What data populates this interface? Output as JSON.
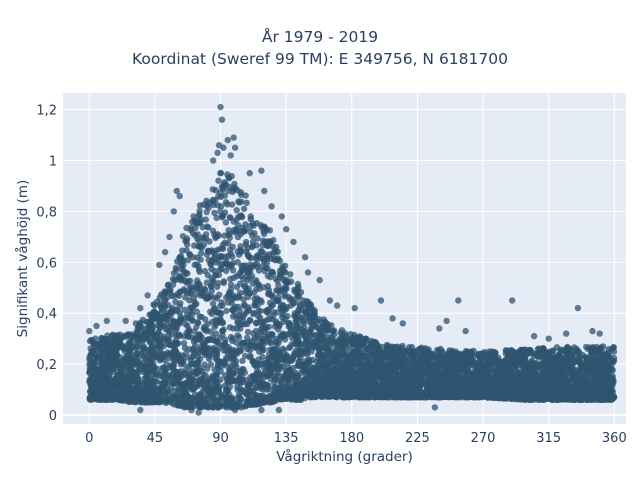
{
  "chart_data": {
    "type": "scatter",
    "title": "År 1979 - 2019",
    "subtitle": "Koordinat (Sweref 99 TM): E 349756, N 6181700",
    "xlabel": "Vågriktning (grader)",
    "ylabel": "Signifikant våghöjd (m)",
    "xlim": [
      -18,
      368
    ],
    "ylim": [
      -0.035,
      1.265
    ],
    "x_ticks": [
      0,
      45,
      90,
      135,
      180,
      225,
      270,
      315,
      360
    ],
    "x_tick_labels": [
      "0",
      "45",
      "90",
      "135",
      "180",
      "225",
      "270",
      "315",
      "360"
    ],
    "y_ticks": [
      0,
      0.2,
      0.4,
      0.6,
      0.8,
      1,
      1.2
    ],
    "y_tick_labels": [
      "0",
      "0,2",
      "0,4",
      "0,6",
      "0,8",
      "1",
      "1,2"
    ],
    "marker_color": "#2f5470",
    "grid": true,
    "background": "#e5ecf6",
    "envelope": {
      "x": [
        0,
        20,
        30,
        40,
        50,
        60,
        65,
        70,
        75,
        80,
        85,
        90,
        95,
        100,
        105,
        110,
        115,
        120,
        125,
        130,
        135,
        140,
        145,
        150,
        155,
        160,
        170,
        180,
        190,
        200,
        220,
        240,
        270,
        300,
        330,
        360
      ],
      "upper": [
        0.3,
        0.32,
        0.33,
        0.41,
        0.48,
        0.6,
        0.72,
        0.78,
        0.82,
        0.85,
        0.9,
        0.96,
        0.95,
        0.94,
        0.88,
        0.84,
        0.8,
        0.75,
        0.72,
        0.65,
        0.58,
        0.54,
        0.5,
        0.46,
        0.42,
        0.38,
        0.34,
        0.32,
        0.3,
        0.28,
        0.27,
        0.26,
        0.25,
        0.26,
        0.27,
        0.27
      ],
      "lower": [
        0.06,
        0.06,
        0.05,
        0.05,
        0.05,
        0.04,
        0.03,
        0.03,
        0.03,
        0.03,
        0.03,
        0.03,
        0.03,
        0.03,
        0.03,
        0.04,
        0.04,
        0.05,
        0.05,
        0.06,
        0.06,
        0.06,
        0.06,
        0.07,
        0.07,
        0.07,
        0.07,
        0.07,
        0.07,
        0.07,
        0.07,
        0.07,
        0.07,
        0.06,
        0.06,
        0.06
      ]
    },
    "outliers": [
      {
        "x": 90,
        "y": 1.21
      },
      {
        "x": 91,
        "y": 1.16
      },
      {
        "x": 89,
        "y": 1.06
      },
      {
        "x": 92,
        "y": 1.05
      },
      {
        "x": 95,
        "y": 1.08
      },
      {
        "x": 97,
        "y": 1.02
      },
      {
        "x": 100,
        "y": 1.05
      },
      {
        "x": 99,
        "y": 1.09
      },
      {
        "x": 85,
        "y": 1.0
      },
      {
        "x": 88,
        "y": 1.03
      },
      {
        "x": 110,
        "y": 0.95
      },
      {
        "x": 118,
        "y": 0.96
      },
      {
        "x": 120,
        "y": 0.88
      },
      {
        "x": 125,
        "y": 0.82
      },
      {
        "x": 132,
        "y": 0.78
      },
      {
        "x": 135,
        "y": 0.73
      },
      {
        "x": 140,
        "y": 0.68
      },
      {
        "x": 148,
        "y": 0.62
      },
      {
        "x": 150,
        "y": 0.56
      },
      {
        "x": 158,
        "y": 0.53
      },
      {
        "x": 165,
        "y": 0.45
      },
      {
        "x": 170,
        "y": 0.43
      },
      {
        "x": 182,
        "y": 0.42
      },
      {
        "x": 200,
        "y": 0.45
      },
      {
        "x": 208,
        "y": 0.38
      },
      {
        "x": 215,
        "y": 0.36
      },
      {
        "x": 240,
        "y": 0.34
      },
      {
        "x": 245,
        "y": 0.37
      },
      {
        "x": 253,
        "y": 0.45
      },
      {
        "x": 258,
        "y": 0.33
      },
      {
        "x": 290,
        "y": 0.45
      },
      {
        "x": 305,
        "y": 0.31
      },
      {
        "x": 315,
        "y": 0.3
      },
      {
        "x": 327,
        "y": 0.32
      },
      {
        "x": 335,
        "y": 0.42
      },
      {
        "x": 345,
        "y": 0.33
      },
      {
        "x": 350,
        "y": 0.32
      },
      {
        "x": 60,
        "y": 0.88
      },
      {
        "x": 62,
        "y": 0.86
      },
      {
        "x": 58,
        "y": 0.8
      },
      {
        "x": 55,
        "y": 0.7
      },
      {
        "x": 52,
        "y": 0.64
      },
      {
        "x": 48,
        "y": 0.59
      },
      {
        "x": 40,
        "y": 0.47
      },
      {
        "x": 35,
        "y": 0.42
      },
      {
        "x": 32,
        "y": 0.36
      },
      {
        "x": 25,
        "y": 0.37
      },
      {
        "x": 12,
        "y": 0.37
      },
      {
        "x": 5,
        "y": 0.35
      },
      {
        "x": 0,
        "y": 0.33
      },
      {
        "x": 237,
        "y": 0.03
      },
      {
        "x": 70,
        "y": 0.02
      },
      {
        "x": 75,
        "y": 0.01
      },
      {
        "x": 118,
        "y": 0.02
      },
      {
        "x": 130,
        "y": 0.02
      },
      {
        "x": 100,
        "y": 0.02
      },
      {
        "x": 35,
        "y": 0.02
      }
    ]
  }
}
